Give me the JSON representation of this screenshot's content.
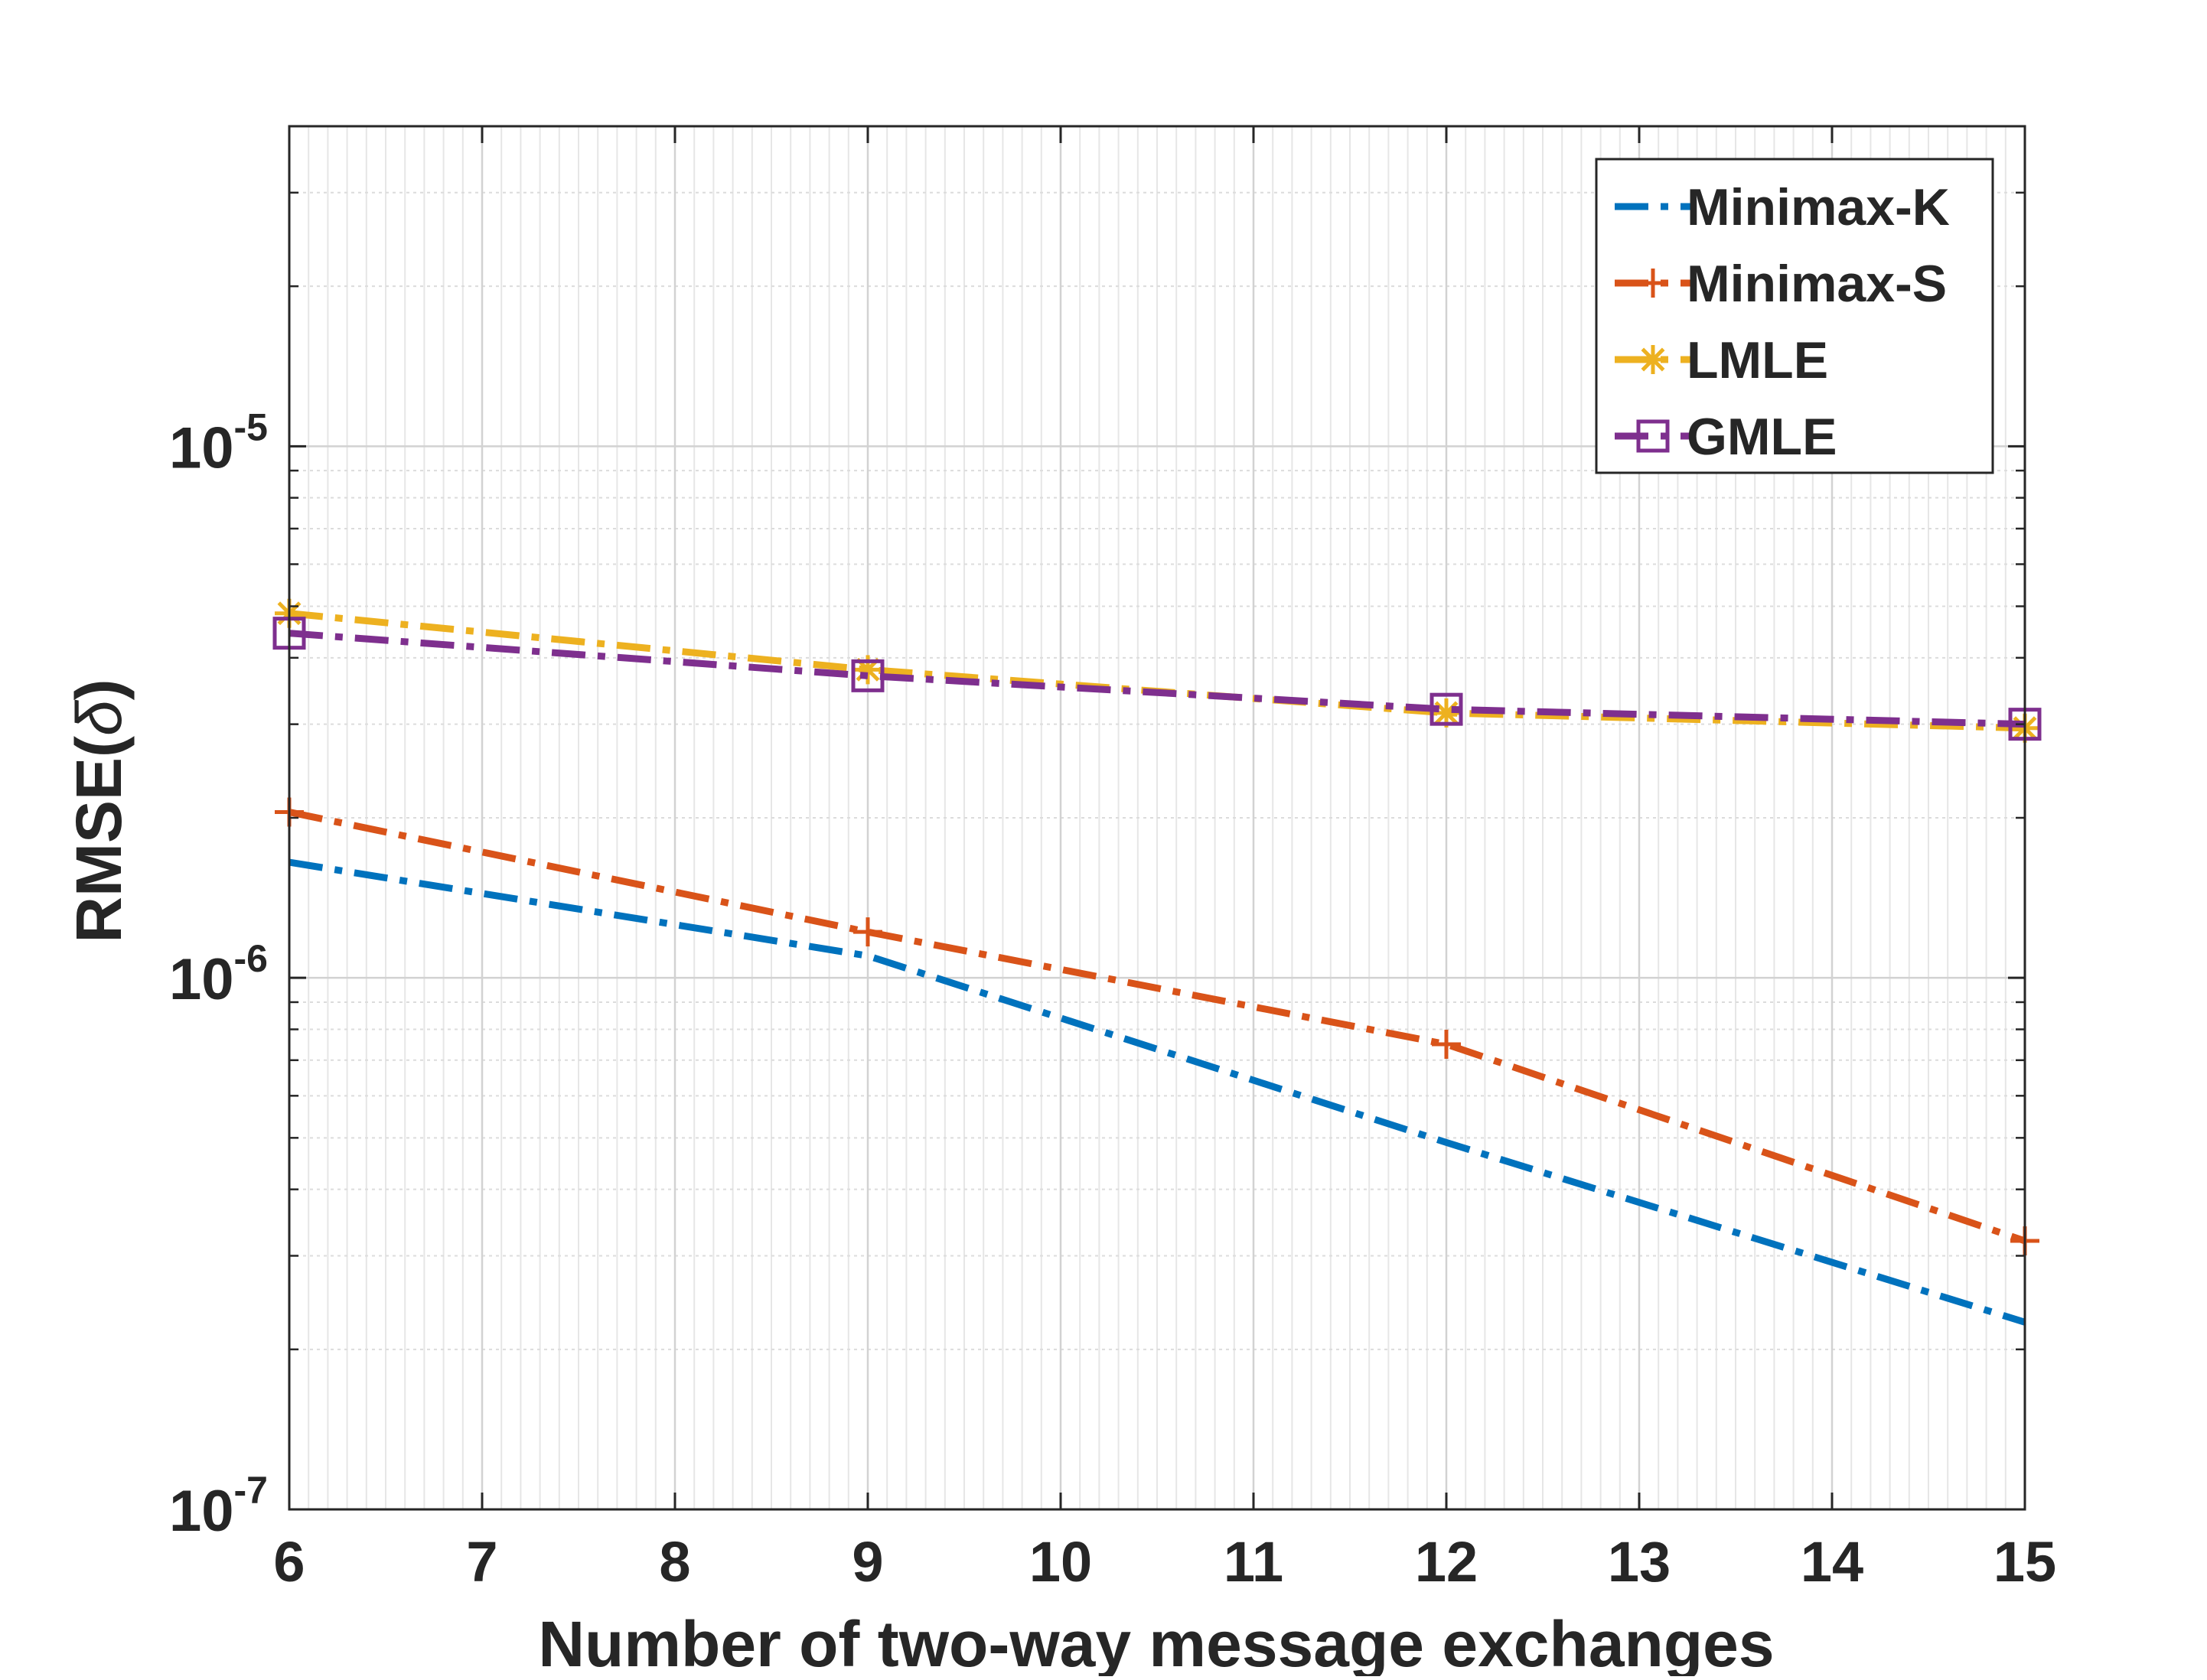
{
  "chart_data": {
    "type": "line",
    "title": "",
    "xlabel": "Number of two-way message exchanges",
    "ylabel_main": "RMSE(",
    "ylabel_symbol": "δ",
    "ylabel_close": ")",
    "x_scale": "linear",
    "y_scale": "log",
    "xlim": [
      6,
      15
    ],
    "ylim": [
      1e-07,
      4e-05
    ],
    "x_ticks": [
      6,
      7,
      8,
      9,
      10,
      11,
      12,
      13,
      14,
      15
    ],
    "x_tick_labels": [
      "6",
      "7",
      "8",
      "9",
      "10",
      "11",
      "12",
      "13",
      "14",
      "15"
    ],
    "y_ticks": [
      {
        "value": 1e-07,
        "base": "10",
        "exp": "-7"
      },
      {
        "value": 1e-06,
        "base": "10",
        "exp": "-6"
      },
      {
        "value": 1e-05,
        "base": "10",
        "exp": "-5"
      }
    ],
    "grid": true,
    "minor_grid": true,
    "legend_position": "top-right",
    "x": [
      6,
      9,
      12,
      15
    ],
    "series": [
      {
        "name": "Minimax-K",
        "color": "#0072BD",
        "marker": "none",
        "linestyle": "dashdot",
        "values": [
          1.65e-06,
          1.1e-06,
          4.9e-07,
          2.25e-07
        ]
      },
      {
        "name": "Minimax-S",
        "color": "#D95319",
        "marker": "plus",
        "linestyle": "dashdot",
        "values": [
          2.05e-06,
          1.22e-06,
          7.5e-07,
          3.2e-07
        ]
      },
      {
        "name": "LMLE",
        "color": "#EDB120",
        "marker": "asterisk",
        "linestyle": "dashdot",
        "values": [
          4.85e-06,
          3.8e-06,
          3.15e-06,
          2.95e-06
        ]
      },
      {
        "name": "GMLE",
        "color": "#7E2F8E",
        "marker": "square",
        "linestyle": "dashdot",
        "values": [
          4.45e-06,
          3.7e-06,
          3.2e-06,
          3e-06
        ]
      }
    ]
  }
}
